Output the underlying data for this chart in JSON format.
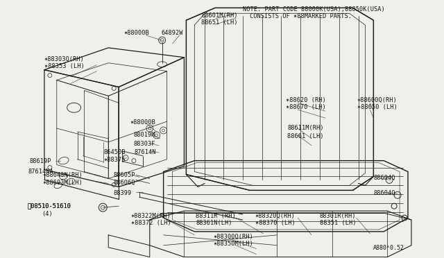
{
  "bg_color": "#f0f0eb",
  "line_color": "#1a1a1a",
  "text_color": "#111111",
  "note_line1": "NOTE: PART CODE 88000K(USA),88050K(USA)",
  "note_line2": "      CONSISTS OF ✶88MARKED PARTS.",
  "watermark": "A880⁴0.52"
}
